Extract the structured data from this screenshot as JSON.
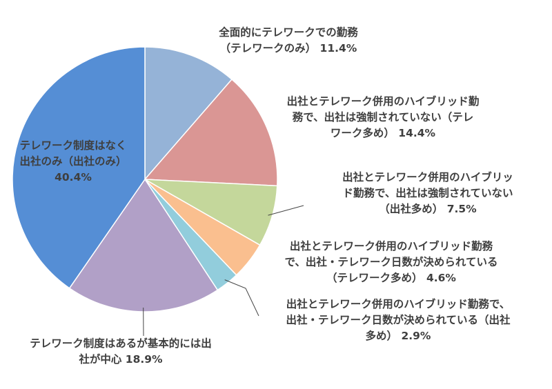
{
  "chart_data": {
    "type": "pie",
    "slices": [
      {
        "label_lines": [
          "全面的にテレワークでの勤務",
          "（テレワークのみ） 11.4%"
        ],
        "value": 11.4,
        "color": "#95b3d7"
      },
      {
        "label_lines": [
          "出社とテレワーク併用のハイブリッド勤",
          "務で、出社は強制されていない（テレ",
          "ワーク多め） 14.4%"
        ],
        "value": 14.4,
        "color": "#da9694"
      },
      {
        "label_lines": [
          "出社とテレワーク併用のハイブリッ",
          "ド勤務で、出社は強制されていない",
          "（出社多め） 7.5%"
        ],
        "value": 7.5,
        "color": "#c4d79b"
      },
      {
        "label_lines": [
          "出社とテレワーク併用のハイブリッド勤務",
          "で、出社・テレワーク日数が決められている",
          "（テレワーク多め） 4.6%"
        ],
        "value": 4.6,
        "color": "#fabf8f"
      },
      {
        "label_lines": [
          "出社とテレワーク併用のハイブリッド勤務で、",
          "出社・テレワーク日数が決められている（出社",
          "多め） 2.9%"
        ],
        "value": 2.9,
        "color": "#92cddc"
      },
      {
        "label_lines": [
          "テレワーク制度はあるが基本的には出",
          "社が中心 18.9%"
        ],
        "value": 18.9,
        "color": "#b1a0c7"
      },
      {
        "label_lines": [
          "テレワーク制度はなく",
          "出社のみ（出社のみ）",
          "40.4%"
        ],
        "value": 40.4,
        "color": "#558ed5"
      }
    ],
    "start": "top",
    "direction": "clockwise",
    "legend": "none"
  }
}
